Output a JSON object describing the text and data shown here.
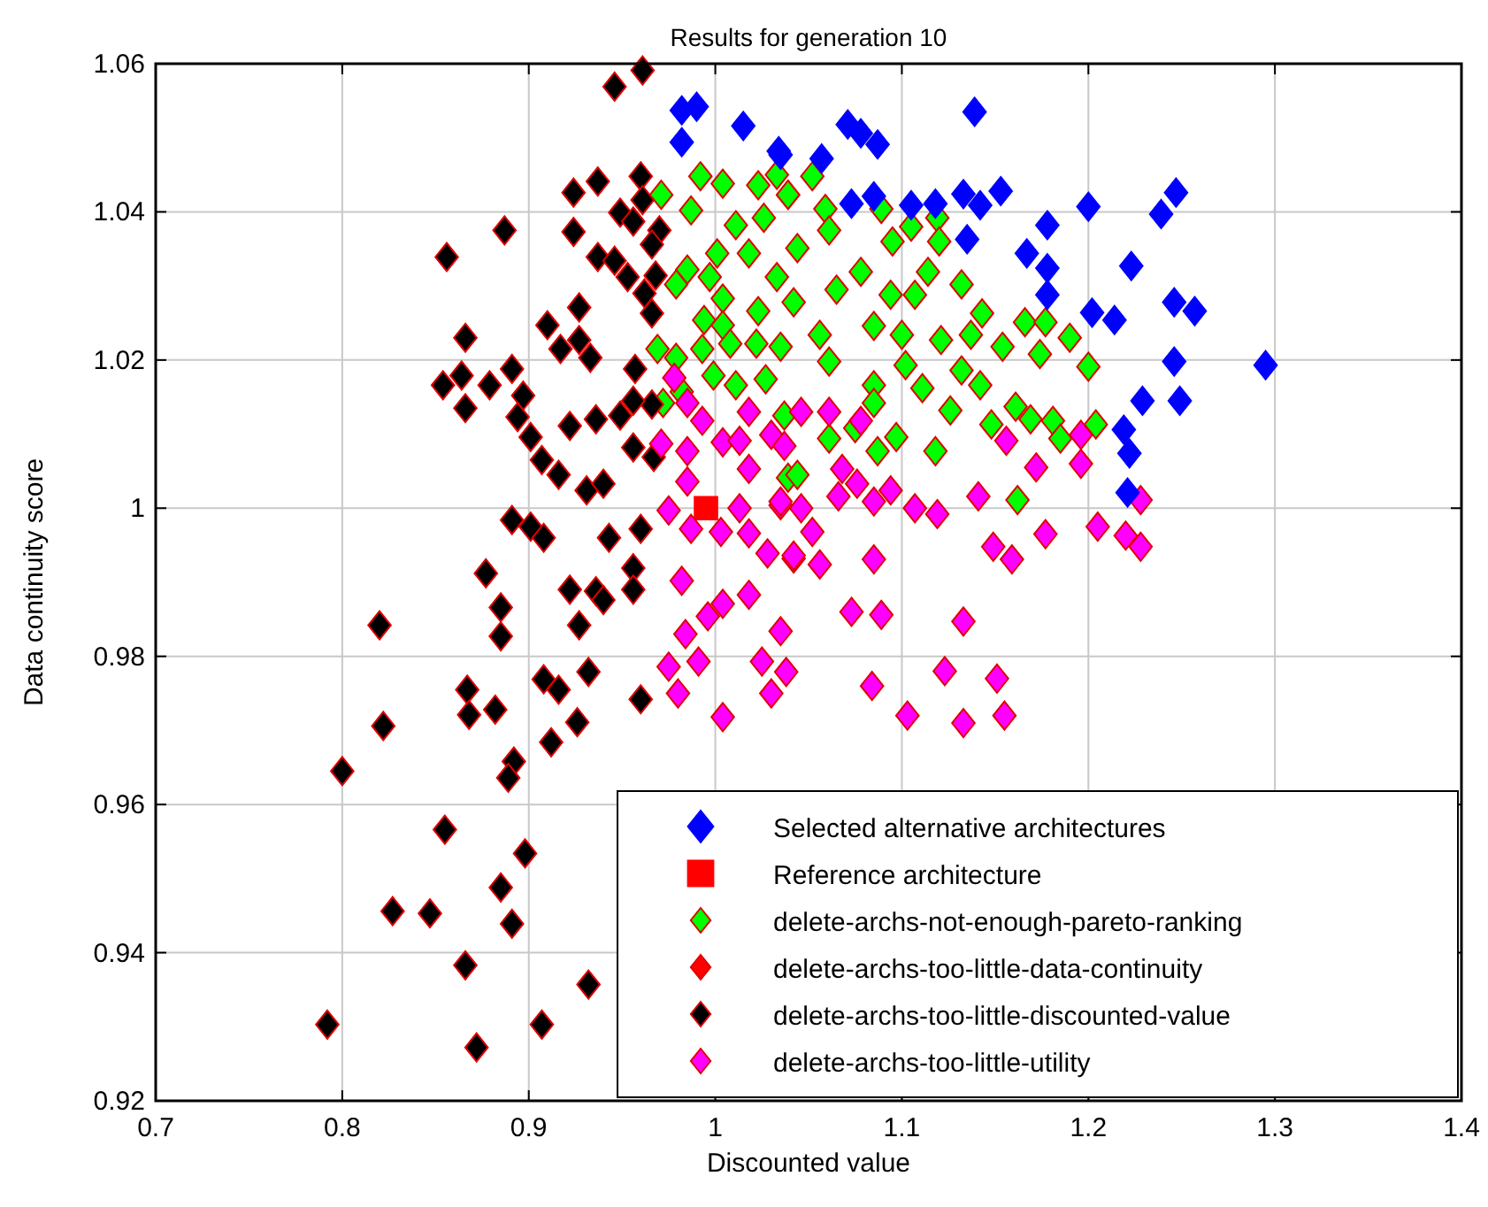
{
  "chart_data": {
    "type": "scatter",
    "title": "Results for generation 10",
    "xlabel": "Discounted value",
    "ylabel": "Data continuity score",
    "xlim": [
      0.7,
      1.4
    ],
    "xticks": [
      0.7,
      0.8,
      0.9,
      1,
      1.1,
      1.2,
      1.3,
      1.4
    ],
    "ylim": [
      0.92,
      1.06
    ],
    "yticks": [
      0.92,
      0.94,
      0.96,
      0.98,
      1,
      1.02,
      1.04,
      1.06
    ],
    "grid": true,
    "legend": "bottom right",
    "series": [
      {
        "name": "Selected alternative architectures",
        "color": "#0000ff",
        "marker": "diamond",
        "x": [
          1.139,
          1.071,
          1.078,
          1.087,
          1.035,
          1.057,
          1.153,
          1.133,
          1.142,
          1.247,
          1.239,
          1.2,
          1.178,
          1.105,
          1.118,
          1.073,
          1.085,
          1.135,
          1.167,
          1.178,
          1.223,
          1.178,
          1.202,
          1.214,
          1.246,
          1.257,
          1.246,
          1.295,
          1.229,
          1.249,
          1.219,
          1.222,
          1.221,
          0.982,
          0.99,
          0.982,
          1.015,
          1.034
        ],
        "values": [
          1.0535,
          1.0518,
          1.0506,
          1.0491,
          1.0477,
          1.0472,
          1.0428,
          1.0424,
          1.0409,
          1.0426,
          1.0397,
          1.0407,
          1.0382,
          1.0409,
          1.0411,
          1.0411,
          1.0421,
          1.0363,
          1.0344,
          1.0324,
          1.0327,
          1.0288,
          1.0264,
          1.0254,
          1.0278,
          1.0266,
          1.0198,
          1.0193,
          1.0145,
          1.0145,
          1.0106,
          1.0074,
          1.0021,
          1.0537,
          1.0542,
          1.0494,
          1.0516,
          1.0482
        ]
      },
      {
        "name": "Reference architecture",
        "color": "#ff0000",
        "marker": "square",
        "x": [
          0.995
        ],
        "values": [
          1.0
        ]
      },
      {
        "name": "delete-archs-not-enough-pareto-ranking",
        "color": "#00ff00",
        "marker": "diamond",
        "x": [
          0.971,
          0.992,
          1.004,
          0.987,
          1.011,
          1.023,
          1.033,
          1.039,
          1.026,
          1.018,
          1.001,
          0.985,
          0.979,
          0.997,
          1.004,
          0.994,
          1.004,
          1.023,
          1.033,
          1.042,
          0.969,
          0.979,
          0.993,
          1.008,
          1.022,
          1.035,
          0.999,
          1.011,
          1.027,
          0.972,
          0.982,
          1.037,
          1.039,
          1.052,
          1.039,
          1.059,
          1.089,
          1.119,
          1.105,
          1.061,
          1.095,
          1.12,
          1.044,
          1.078,
          1.114,
          1.132,
          1.065,
          1.094,
          1.107,
          1.143,
          1.166,
          1.177,
          1.19,
          1.154,
          1.137,
          1.121,
          1.1,
          1.085,
          1.056,
          1.174,
          1.2,
          1.061,
          1.102,
          1.132,
          1.085,
          1.111,
          1.142,
          1.126,
          1.085,
          1.161,
          1.148,
          1.169,
          1.181,
          1.204,
          1.185,
          1.097,
          1.075,
          1.061,
          1.118,
          1.087,
          1.162,
          1.044
        ],
        "values": [
          1.0423,
          1.0448,
          1.0438,
          1.0402,
          1.0382,
          1.0436,
          1.045,
          1.0423,
          1.0392,
          1.0344,
          1.0344,
          1.0322,
          1.0302,
          1.0312,
          1.0283,
          1.0254,
          1.0247,
          1.0266,
          1.0312,
          1.0278,
          1.0215,
          1.0203,
          1.0215,
          1.0222,
          1.0222,
          1.0218,
          1.0179,
          1.0166,
          1.0174,
          1.0142,
          1.0157,
          1.0125,
          1.0041,
          1.0448,
          1.0423,
          1.0404,
          1.0404,
          1.0392,
          1.038,
          1.0375,
          1.036,
          1.036,
          1.0351,
          1.0319,
          1.0319,
          1.0302,
          1.0295,
          1.0288,
          1.0288,
          1.0263,
          1.0251,
          1.0251,
          1.023,
          1.0218,
          1.0234,
          1.0227,
          1.0234,
          1.0246,
          1.0234,
          1.0208,
          1.0191,
          1.0198,
          1.0193,
          1.0186,
          1.0166,
          1.0162,
          1.0166,
          1.0132,
          1.0142,
          1.0137,
          1.0113,
          1.012,
          1.0118,
          1.0113,
          1.0094,
          1.0096,
          1.0108,
          1.0094,
          1.0077,
          1.0077,
          1.0011,
          1.0045
        ]
      },
      {
        "name": "delete-archs-too-little-data-continuity",
        "color": "#ff0000",
        "marker": "diamond"
      },
      {
        "name": "delete-archs-too-little-discounted-value",
        "color": "#000000",
        "marker": "diamond",
        "x": [
          0.961,
          0.946,
          0.924,
          0.937,
          0.96,
          0.961,
          0.887,
          0.856,
          0.924,
          0.949,
          0.956,
          0.97,
          0.966,
          0.937,
          0.946,
          0.953,
          0.968,
          0.962,
          0.966,
          0.927,
          0.91,
          0.866,
          0.927,
          0.917,
          0.933,
          0.957,
          0.891,
          0.864,
          0.854,
          0.879,
          0.897,
          0.866,
          0.894,
          0.949,
          0.966,
          0.956,
          0.922,
          0.936,
          0.901,
          0.956,
          0.907,
          0.916,
          0.931,
          0.94,
          0.967,
          0.891,
          0.901,
          0.908,
          0.943,
          0.96,
          0.877,
          0.885,
          0.885,
          0.82,
          0.922,
          0.936,
          0.94,
          0.927,
          0.956,
          0.956,
          0.867,
          0.868,
          0.882,
          0.908,
          0.916,
          0.932,
          0.926,
          0.912,
          0.96,
          0.822,
          0.8,
          0.892,
          0.889,
          0.855,
          0.898,
          0.885,
          0.827,
          0.847,
          0.891,
          0.866,
          0.792,
          0.872,
          0.907,
          0.932
        ],
        "values": [
          1.0591,
          1.0569,
          1.0426,
          1.0441,
          1.0448,
          1.0416,
          1.0375,
          1.0339,
          1.0373,
          1.0399,
          1.0387,
          1.0375,
          1.0356,
          1.0339,
          1.0334,
          1.0312,
          1.0314,
          1.029,
          1.0263,
          1.0271,
          1.0247,
          1.023,
          1.0227,
          1.0215,
          1.0203,
          1.0188,
          1.0188,
          1.0179,
          1.0166,
          1.0166,
          1.0152,
          1.0135,
          1.0123,
          1.0125,
          1.014,
          1.0145,
          1.0111,
          1.012,
          1.0096,
          1.0082,
          1.0065,
          1.0045,
          1.0024,
          1.0033,
          1.0069,
          0.9984,
          0.9975,
          0.996,
          0.996,
          0.9972,
          0.9912,
          0.9866,
          0.9827,
          0.9842,
          0.989,
          0.9888,
          0.9876,
          0.9842,
          0.9919,
          0.989,
          0.9755,
          0.9721,
          0.9728,
          0.9769,
          0.9755,
          0.9779,
          0.9711,
          0.9684,
          0.9742,
          0.9706,
          0.9645,
          0.9658,
          0.9636,
          0.9566,
          0.9534,
          0.9488,
          0.9456,
          0.9453,
          0.9439,
          0.9383,
          0.9303,
          0.9272,
          0.9303,
          0.9357
        ]
      },
      {
        "name": "delete-archs-too-little-utility",
        "color": "#ff00ff",
        "marker": "diamond",
        "x": [
          0.978,
          0.985,
          0.993,
          0.971,
          0.985,
          1.004,
          1.013,
          1.018,
          1.018,
          1.03,
          0.985,
          0.975,
          1.013,
          1.035,
          1.003,
          0.987,
          1.018,
          1.028,
          1.042,
          0.982,
          0.996,
          1.004,
          1.018,
          0.984,
          0.991,
          0.975,
          0.98,
          1.004,
          1.025,
          1.03,
          1.035,
          1.038,
          1.046,
          1.061,
          1.078,
          1.037,
          1.068,
          1.076,
          1.094,
          1.066,
          1.035,
          1.046,
          1.085,
          1.107,
          1.119,
          1.141,
          1.156,
          1.172,
          1.196,
          1.196,
          1.228,
          1.052,
          1.205,
          1.22,
          1.228,
          1.177,
          1.149,
          1.159,
          1.042,
          1.056,
          1.085,
          1.073,
          1.084,
          1.103,
          1.123,
          1.133,
          1.151,
          1.155,
          1.089,
          1.133
        ],
        "values": [
          1.0176,
          1.0142,
          1.0118,
          1.0087,
          1.0077,
          1.0089,
          1.0091,
          1.013,
          1.0053,
          1.0099,
          1.0036,
          0.9997,
          1.0,
          1.0004,
          0.9968,
          0.9972,
          0.9966,
          0.9939,
          0.9932,
          0.9902,
          0.9854,
          0.9871,
          0.9883,
          0.983,
          0.9793,
          0.9786,
          0.975,
          0.9718,
          0.9793,
          0.975,
          0.9834,
          0.9779,
          1.013,
          1.013,
          1.0118,
          1.0084,
          1.0053,
          1.0033,
          1.0024,
          1.0016,
          1.0009,
          1.0,
          1.0009,
          1.0,
          0.9992,
          1.0016,
          1.0091,
          1.0055,
          1.0099,
          1.006,
          1.0011,
          0.9968,
          0.9975,
          0.9963,
          0.9948,
          0.9965,
          0.9948,
          0.9931,
          0.9936,
          0.9924,
          0.9931,
          0.986,
          0.976,
          0.972,
          0.978,
          0.971,
          0.977,
          0.972,
          0.9856,
          0.9847
        ]
      }
    ]
  }
}
